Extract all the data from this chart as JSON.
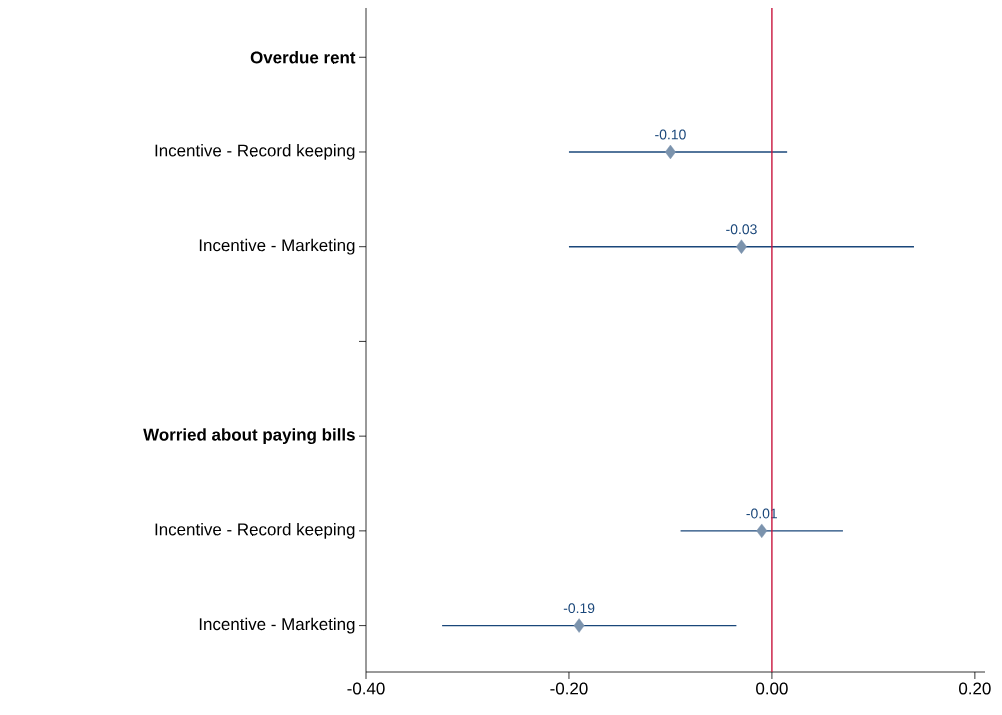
{
  "chart_data": {
    "type": "scatter",
    "orientation": "horizontal",
    "categories": [
      "**Overdue rent**",
      "Incentive - Record keeping",
      "Incentive - Marketing",
      null,
      "**Worried about paying bills**",
      "Incentive - Record keeping",
      "Incentive - Marketing"
    ],
    "series": [
      {
        "color": "#7b93ad",
        "values": [
          null,
          -0.1,
          -0.03,
          null,
          null,
          -0.01,
          -0.19
        ],
        "errors": [
          null,
          [
            -0.2,
            0.015
          ],
          [
            -0.2,
            0.14
          ],
          null,
          null,
          [
            -0.09,
            0.07
          ],
          [
            -0.325,
            -0.035
          ]
        ],
        "value_labels": [
          null,
          "-0.10",
          "-0.03",
          null,
          null,
          "-0.01",
          "-0.19"
        ]
      }
    ],
    "marker": "diamond",
    "xlim": [
      -0.4,
      0.21
    ],
    "xticks": [
      {
        "value": -0.4,
        "label": "-0.40"
      },
      {
        "value": -0.2,
        "label": "-0.20"
      },
      {
        "value": 0,
        "label": "0.00"
      },
      {
        "value": 0.2,
        "label": "0.20"
      }
    ],
    "ref_lines": [
      {
        "axis": "x",
        "value": 0,
        "color": "#c8143c"
      }
    ],
    "grid": false
  }
}
